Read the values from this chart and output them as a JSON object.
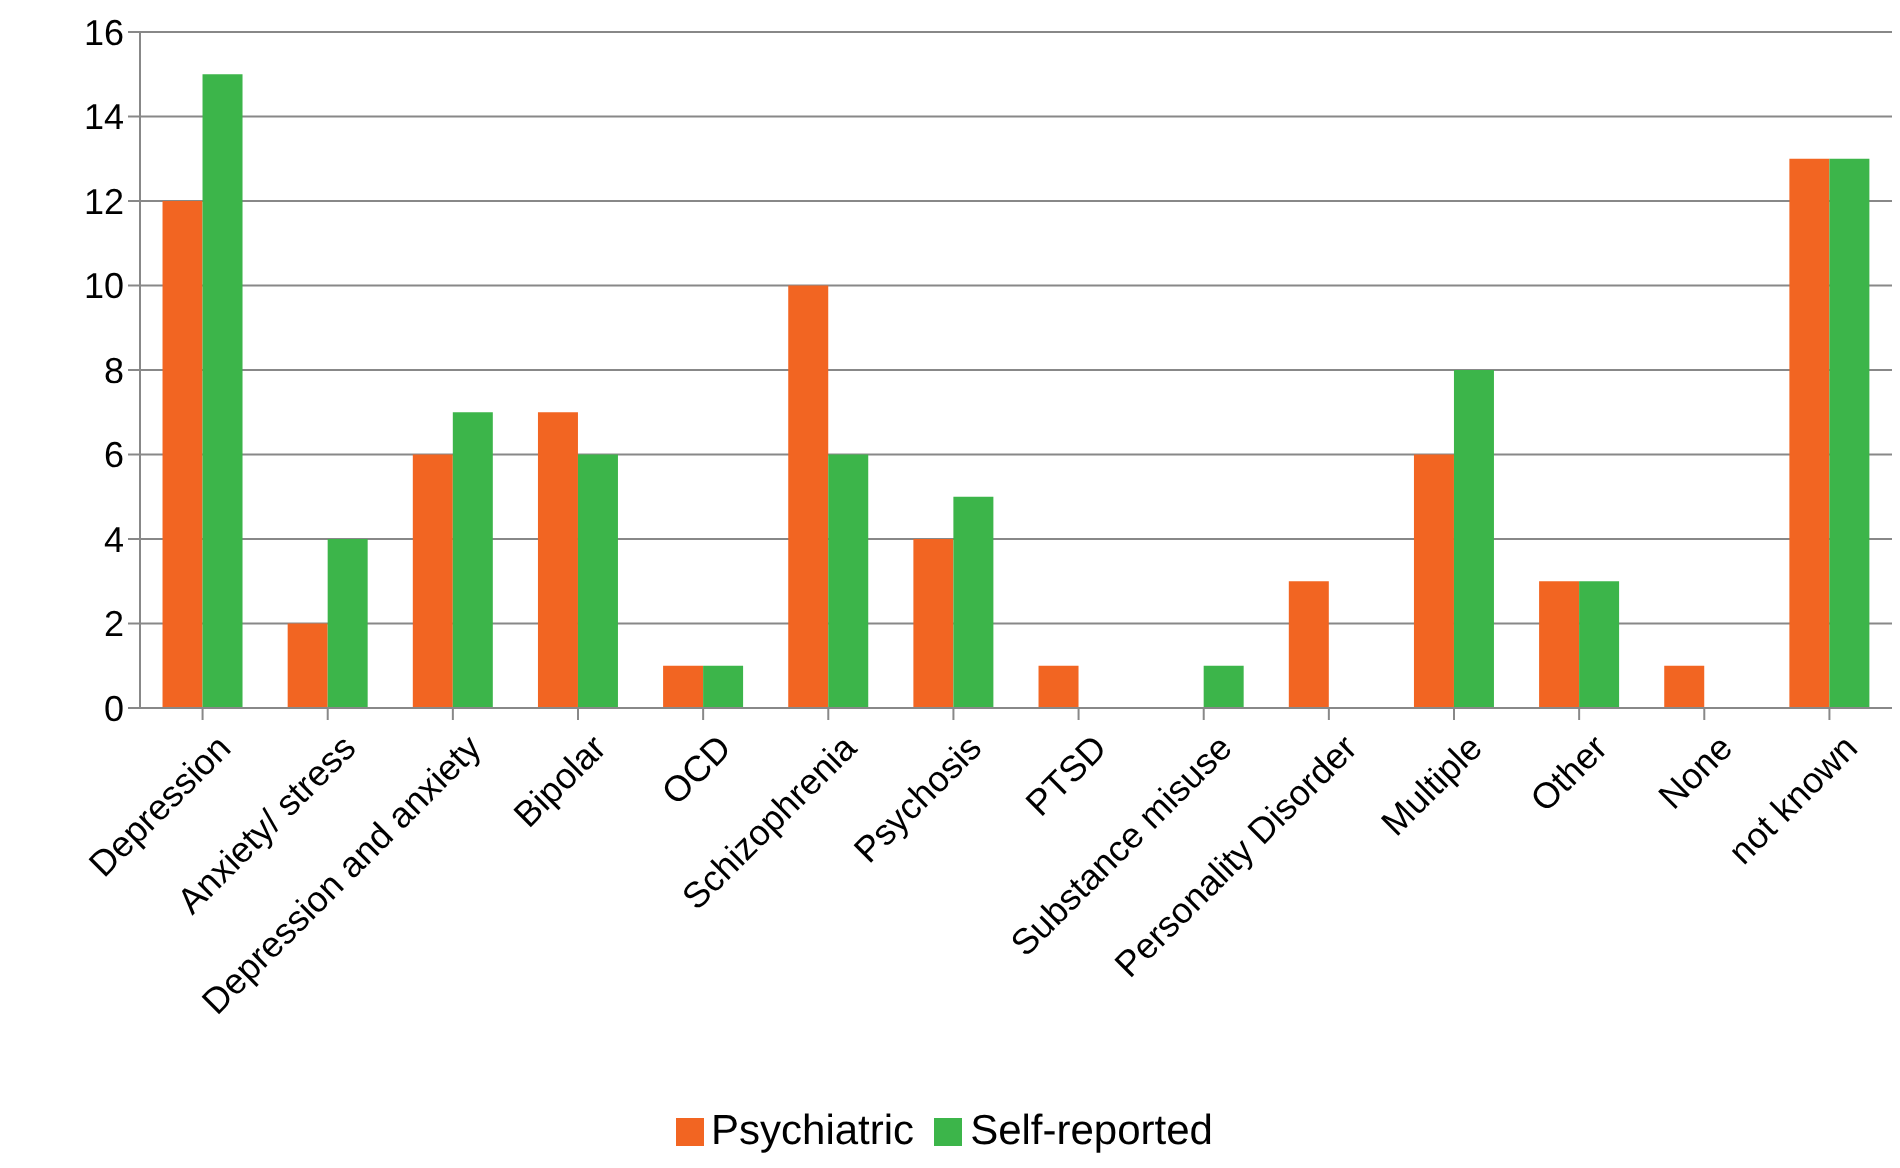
{
  "chart_data": {
    "type": "bar",
    "categories": [
      "Depression",
      "Anxiety/ stress",
      "Depression and anxiety",
      "Bipolar",
      "OCD",
      "Schizophrenia",
      "Psychosis",
      "PTSD",
      "Substance misuse",
      "Personality Disorder",
      "Multiple",
      "Other",
      "None",
      "not known"
    ],
    "series": [
      {
        "name": "Psychiatric",
        "color": "#f26522",
        "values": [
          12,
          2,
          6,
          7,
          1,
          10,
          4,
          1,
          0,
          3,
          6,
          3,
          1,
          13
        ]
      },
      {
        "name": "Self-reported",
        "color": "#3cb54a",
        "values": [
          15,
          4,
          7,
          6,
          1,
          6,
          5,
          0,
          1,
          0,
          8,
          3,
          0,
          13
        ]
      }
    ],
    "ylim": [
      0,
      16
    ],
    "yticks": [
      0,
      2,
      4,
      6,
      8,
      10,
      12,
      14,
      16
    ],
    "grid": "y",
    "legend": "bottom"
  }
}
